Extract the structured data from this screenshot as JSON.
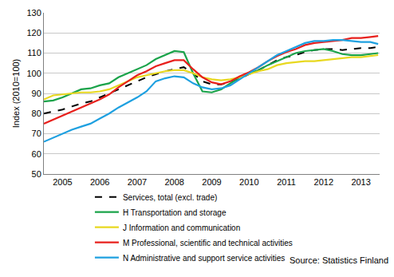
{
  "chart_data": {
    "type": "line",
    "y_label": "Index (2010=100)",
    "annotations": [
      "Source: Statistics Finland"
    ],
    "x": [
      2005,
      2005.25,
      2005.5,
      2005.75,
      2006,
      2006.25,
      2006.5,
      2006.75,
      2007,
      2007.25,
      2007.5,
      2007.75,
      2008,
      2008.25,
      2008.5,
      2008.75,
      2009,
      2009.25,
      2009.5,
      2009.75,
      2010,
      2010.25,
      2010.5,
      2010.75,
      2011,
      2011.25,
      2011.5,
      2011.75,
      2012,
      2012.25,
      2012.5,
      2012.75,
      2013,
      2013.25,
      2013.5,
      2013.75,
      2013.96
    ],
    "series": [
      {
        "name": "Services, total (excl. trade)",
        "color": "#000000",
        "line_style": "dashed",
        "values": [
          80,
          81,
          82,
          83.5,
          85,
          86,
          88,
          90,
          92,
          94,
          96,
          98,
          99.5,
          101,
          102,
          103,
          100,
          96,
          94.5,
          94.5,
          95.5,
          97.5,
          99.5,
          101.5,
          104,
          106.5,
          108,
          109,
          110.5,
          111.5,
          112,
          112,
          111.5,
          112,
          112.5,
          112.5,
          113
        ]
      },
      {
        "name": "H Transportation and storage",
        "color": "#1aa34a",
        "line_style": "solid",
        "values": [
          86,
          86.5,
          88,
          90,
          92,
          92.5,
          94,
          95,
          98,
          100,
          102,
          104,
          107,
          109,
          111,
          110.5,
          100,
          91,
          90.5,
          92,
          95,
          98,
          100,
          101.5,
          104,
          106,
          108,
          110,
          111,
          111.5,
          112,
          111,
          109.5,
          109,
          109,
          109.5,
          110
        ]
      },
      {
        "name": "J Information and communication",
        "color": "#e8d820",
        "line_style": "solid",
        "values": [
          87,
          89,
          89.5,
          90,
          90.5,
          90.5,
          91,
          92,
          94,
          96,
          98,
          99,
          100,
          101,
          101.5,
          101.5,
          100,
          98,
          97,
          96.5,
          97,
          98,
          99.5,
          101,
          102,
          104,
          105,
          105.5,
          106,
          106,
          106.5,
          107,
          107.5,
          108,
          108,
          108.5,
          109
        ]
      },
      {
        "name": "M Professional, scientific and technical activities",
        "color": "#e8201c",
        "line_style": "solid",
        "values": [
          75,
          77,
          79,
          81,
          83,
          85,
          87,
          89.5,
          93,
          96,
          99,
          101,
          103.5,
          105,
          106.5,
          106.5,
          102,
          98,
          95.5,
          94.5,
          96,
          98.5,
          100.5,
          103,
          106,
          108.5,
          110.5,
          112,
          114,
          115,
          115.5,
          116,
          116.5,
          117.5,
          117.5,
          118,
          118.5
        ]
      },
      {
        "name": "N Administrative and support service activities",
        "color": "#1ea0e0",
        "line_style": "solid",
        "values": [
          66,
          68,
          70,
          72,
          73.5,
          75,
          77.5,
          80,
          83,
          85.5,
          88,
          91,
          96,
          97.5,
          98.5,
          98,
          95,
          93,
          92,
          92.5,
          94,
          97,
          100,
          103,
          106,
          109,
          111,
          113,
          115,
          116,
          116,
          116.5,
          116.5,
          116,
          115.5,
          115.5,
          114.5
        ]
      }
    ],
    "xlim": [
      2005,
      2014
    ],
    "xticks": [
      {
        "value": 2005.5,
        "label": "2005"
      },
      {
        "value": 2006.5,
        "label": "2006"
      },
      {
        "value": 2007.5,
        "label": "2007"
      },
      {
        "value": 2008.5,
        "label": "2008"
      },
      {
        "value": 2009.5,
        "label": "2009"
      },
      {
        "value": 2010.5,
        "label": "2010"
      },
      {
        "value": 2011.5,
        "label": "2011"
      },
      {
        "value": 2012.5,
        "label": "2012"
      },
      {
        "value": 2013.5,
        "label": "2013"
      }
    ],
    "ylim": [
      50,
      130
    ],
    "yticks": [
      50,
      60,
      70,
      80,
      90,
      100,
      110,
      120,
      130
    ],
    "grid": true,
    "legend": "bottom"
  }
}
